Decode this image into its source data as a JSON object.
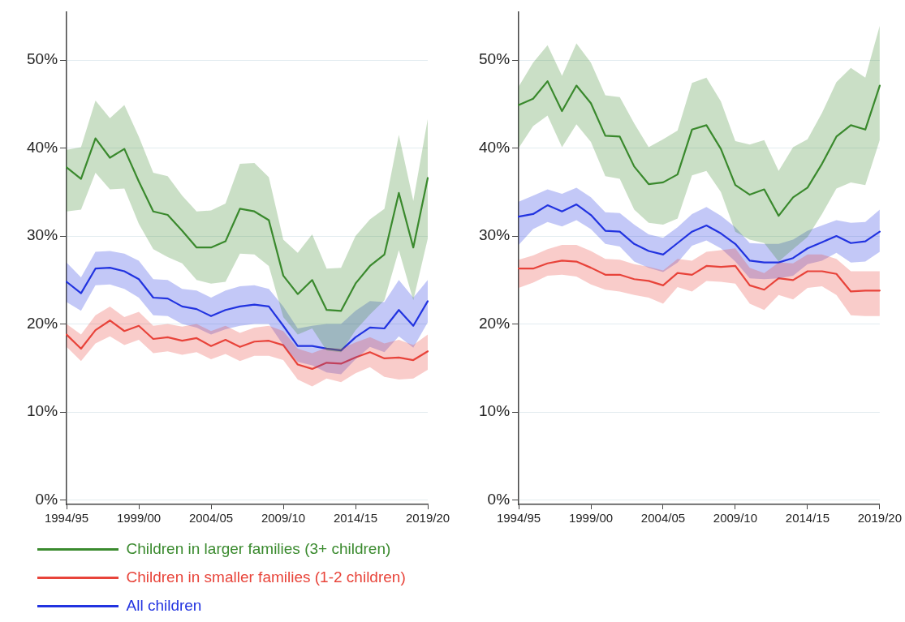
{
  "chart_data": [
    {
      "type": "line",
      "categories": [
        "1994/95",
        null,
        null,
        null,
        null,
        "1999/00",
        null,
        null,
        null,
        null,
        "2004/05",
        null,
        null,
        null,
        null,
        "2009/10",
        null,
        null,
        null,
        null,
        "2014/15",
        null,
        null,
        null,
        null,
        "2019/20"
      ],
      "ylim": [
        -0.5,
        55.5
      ],
      "yticks": [
        {
          "value": 0,
          "label": "0%"
        },
        {
          "value": 10,
          "label": "10%"
        },
        {
          "value": 20,
          "label": "20%"
        },
        {
          "value": 30,
          "label": "30%"
        },
        {
          "value": 40,
          "label": "40%"
        },
        {
          "value": 50,
          "label": "50%"
        }
      ],
      "grid": "y",
      "legend": "bottom",
      "marker": "none",
      "line_style": "solid",
      "series": [
        {
          "name": "Children in larger families (3+ children)",
          "color": "#3a8a2e",
          "values": [
            37.8,
            36.5,
            41.1,
            38.9,
            39.9,
            36.2,
            32.8,
            32.4,
            30.6,
            28.7,
            28.7,
            29.4,
            33.1,
            32.8,
            31.8,
            25.5,
            23.4,
            25.0,
            21.6,
            21.5,
            24.6,
            26.6,
            27.9,
            34.9,
            28.7,
            36.6
          ],
          "upper": [
            39.8,
            40.1,
            45.4,
            43.4,
            44.9,
            41.3,
            37.2,
            36.8,
            34.6,
            32.8,
            32.9,
            33.7,
            38.2,
            38.3,
            36.7,
            29.6,
            28.1,
            30.2,
            26.3,
            26.4,
            30.0,
            31.9,
            33.1,
            41.5,
            34.0,
            43.3
          ],
          "lower": [
            32.8,
            33.0,
            37.2,
            35.3,
            35.4,
            31.4,
            28.5,
            27.6,
            26.9,
            25.0,
            24.6,
            24.8,
            28.0,
            27.9,
            26.6,
            20.8,
            18.8,
            19.5,
            17.0,
            16.8,
            19.3,
            21.1,
            22.7,
            28.4,
            22.7,
            29.7
          ]
        },
        {
          "name": "Children in smaller families (1-2 children)",
          "color": "#e8443a",
          "values": [
            18.8,
            17.2,
            19.3,
            20.4,
            19.2,
            19.8,
            18.3,
            18.5,
            18.1,
            18.4,
            17.5,
            18.2,
            17.4,
            18.0,
            18.1,
            17.6,
            15.4,
            14.9,
            15.6,
            15.5,
            16.2,
            16.8,
            16.1,
            16.2,
            15.9,
            16.9
          ],
          "upper": [
            20.0,
            18.8,
            21.0,
            22.0,
            20.8,
            21.4,
            19.8,
            20.0,
            19.7,
            20.0,
            19.2,
            19.8,
            19.0,
            19.6,
            19.8,
            19.2,
            17.2,
            16.7,
            17.3,
            17.2,
            17.9,
            18.5,
            17.8,
            18.2,
            17.6,
            18.8
          ],
          "lower": [
            17.4,
            15.8,
            17.8,
            18.6,
            17.6,
            18.2,
            16.7,
            16.9,
            16.5,
            16.8,
            16.0,
            16.6,
            15.8,
            16.4,
            16.4,
            15.9,
            13.7,
            12.9,
            13.8,
            13.4,
            14.4,
            15.1,
            14.0,
            13.7,
            13.8,
            14.8
          ]
        },
        {
          "name": "All children",
          "color": "#2233e0",
          "values": [
            24.8,
            23.5,
            26.3,
            26.4,
            26.0,
            25.1,
            23.0,
            22.9,
            22.0,
            21.7,
            20.9,
            21.6,
            22.0,
            22.2,
            22.0,
            19.8,
            17.5,
            17.5,
            17.2,
            17.0,
            18.5,
            19.6,
            19.5,
            21.6,
            19.8,
            22.6
          ],
          "upper": [
            27.0,
            25.3,
            28.2,
            28.3,
            28.0,
            27.2,
            25.1,
            25.0,
            24.0,
            23.8,
            23.0,
            23.8,
            24.3,
            24.4,
            24.0,
            22.0,
            19.5,
            19.8,
            20.0,
            20.0,
            21.5,
            22.6,
            22.5,
            25.0,
            23.0,
            25.0
          ],
          "lower": [
            22.5,
            21.5,
            24.4,
            24.5,
            24.0,
            23.0,
            21.0,
            20.9,
            20.0,
            19.6,
            18.8,
            19.4,
            19.8,
            20.0,
            20.0,
            17.6,
            15.7,
            15.3,
            14.5,
            14.3,
            16.0,
            17.4,
            16.8,
            18.6,
            17.3,
            20.2
          ]
        }
      ]
    },
    {
      "type": "line",
      "categories": [
        "1994/95",
        null,
        null,
        null,
        null,
        "1999/00",
        null,
        null,
        null,
        null,
        "2004/05",
        null,
        null,
        null,
        null,
        "2009/10",
        null,
        null,
        null,
        null,
        "2014/15",
        null,
        null,
        null,
        null,
        "2019/20"
      ],
      "ylim": [
        -0.5,
        55.5
      ],
      "yticks": [
        {
          "value": 0,
          "label": "0%"
        },
        {
          "value": 10,
          "label": "10%"
        },
        {
          "value": 20,
          "label": "20%"
        },
        {
          "value": 30,
          "label": "30%"
        },
        {
          "value": 40,
          "label": "40%"
        },
        {
          "value": 50,
          "label": "50%"
        }
      ],
      "grid": "y",
      "marker": "none",
      "line_style": "solid",
      "series": [
        {
          "color": "#3a8a2e",
          "values": [
            44.9,
            45.6,
            47.6,
            44.2,
            47.1,
            45.1,
            41.4,
            41.3,
            37.9,
            35.9,
            36.1,
            37.0,
            42.1,
            42.6,
            39.9,
            35.8,
            34.7,
            35.3,
            32.3,
            34.4,
            35.5,
            38.2,
            41.3,
            42.6,
            42.1,
            47.1
          ],
          "upper": [
            47.0,
            49.7,
            51.7,
            48.2,
            51.9,
            49.7,
            46.0,
            45.8,
            42.8,
            40.1,
            41.0,
            42.0,
            47.4,
            48.0,
            45.3,
            40.8,
            40.4,
            40.9,
            37.4,
            40.1,
            41.0,
            44.0,
            47.5,
            49.1,
            48.0,
            53.9
          ],
          "lower": [
            40.0,
            42.5,
            43.7,
            40.1,
            42.7,
            40.7,
            36.8,
            36.5,
            33.0,
            31.5,
            31.3,
            32.0,
            36.9,
            37.4,
            35.0,
            30.5,
            29.6,
            29.2,
            27.1,
            28.5,
            29.9,
            32.5,
            35.4,
            36.1,
            35.8,
            40.9
          ]
        },
        {
          "color": "#e8443a",
          "values": [
            26.3,
            26.3,
            26.9,
            27.2,
            27.1,
            26.4,
            25.6,
            25.6,
            25.1,
            24.9,
            24.4,
            25.8,
            25.6,
            26.6,
            26.5,
            26.6,
            24.4,
            23.9,
            25.2,
            25.0,
            26.0,
            26.0,
            25.7,
            23.7,
            23.8,
            23.8
          ],
          "upper": [
            27.3,
            27.8,
            28.5,
            29.0,
            29.0,
            28.3,
            27.4,
            27.3,
            26.8,
            26.5,
            26.1,
            27.4,
            27.2,
            28.2,
            28.4,
            28.6,
            26.4,
            25.8,
            27.0,
            26.9,
            27.9,
            27.9,
            27.4,
            26.0,
            26.0,
            26.0
          ],
          "lower": [
            24.1,
            24.7,
            25.5,
            25.6,
            25.4,
            24.5,
            23.9,
            23.7,
            23.3,
            23.0,
            22.3,
            24.2,
            23.7,
            24.9,
            24.8,
            24.6,
            22.3,
            21.6,
            23.3,
            22.8,
            24.1,
            24.3,
            23.3,
            21.0,
            20.9,
            20.9
          ]
        },
        {
          "color": "#2233e0",
          "values": [
            32.2,
            32.5,
            33.5,
            32.8,
            33.6,
            32.4,
            30.6,
            30.5,
            29.1,
            28.3,
            27.9,
            29.2,
            30.5,
            31.2,
            30.3,
            29.1,
            27.2,
            27.0,
            27.0,
            27.5,
            28.6,
            29.3,
            30.0,
            29.2,
            29.4,
            30.5
          ],
          "upper": [
            33.9,
            34.6,
            35.3,
            34.8,
            35.5,
            34.4,
            32.7,
            32.6,
            31.3,
            30.2,
            29.8,
            31.0,
            32.5,
            33.3,
            32.3,
            31.0,
            29.2,
            29.1,
            29.1,
            29.6,
            30.6,
            31.2,
            31.8,
            31.5,
            31.6,
            33.0
          ],
          "lower": [
            29.0,
            30.8,
            31.6,
            31.1,
            31.8,
            30.8,
            29.1,
            28.8,
            27.1,
            26.4,
            25.9,
            27.0,
            28.9,
            29.5,
            28.6,
            27.1,
            25.2,
            25.1,
            25.2,
            25.5,
            26.8,
            27.2,
            28.1,
            27.0,
            27.1,
            28.2
          ]
        }
      ]
    }
  ]
}
